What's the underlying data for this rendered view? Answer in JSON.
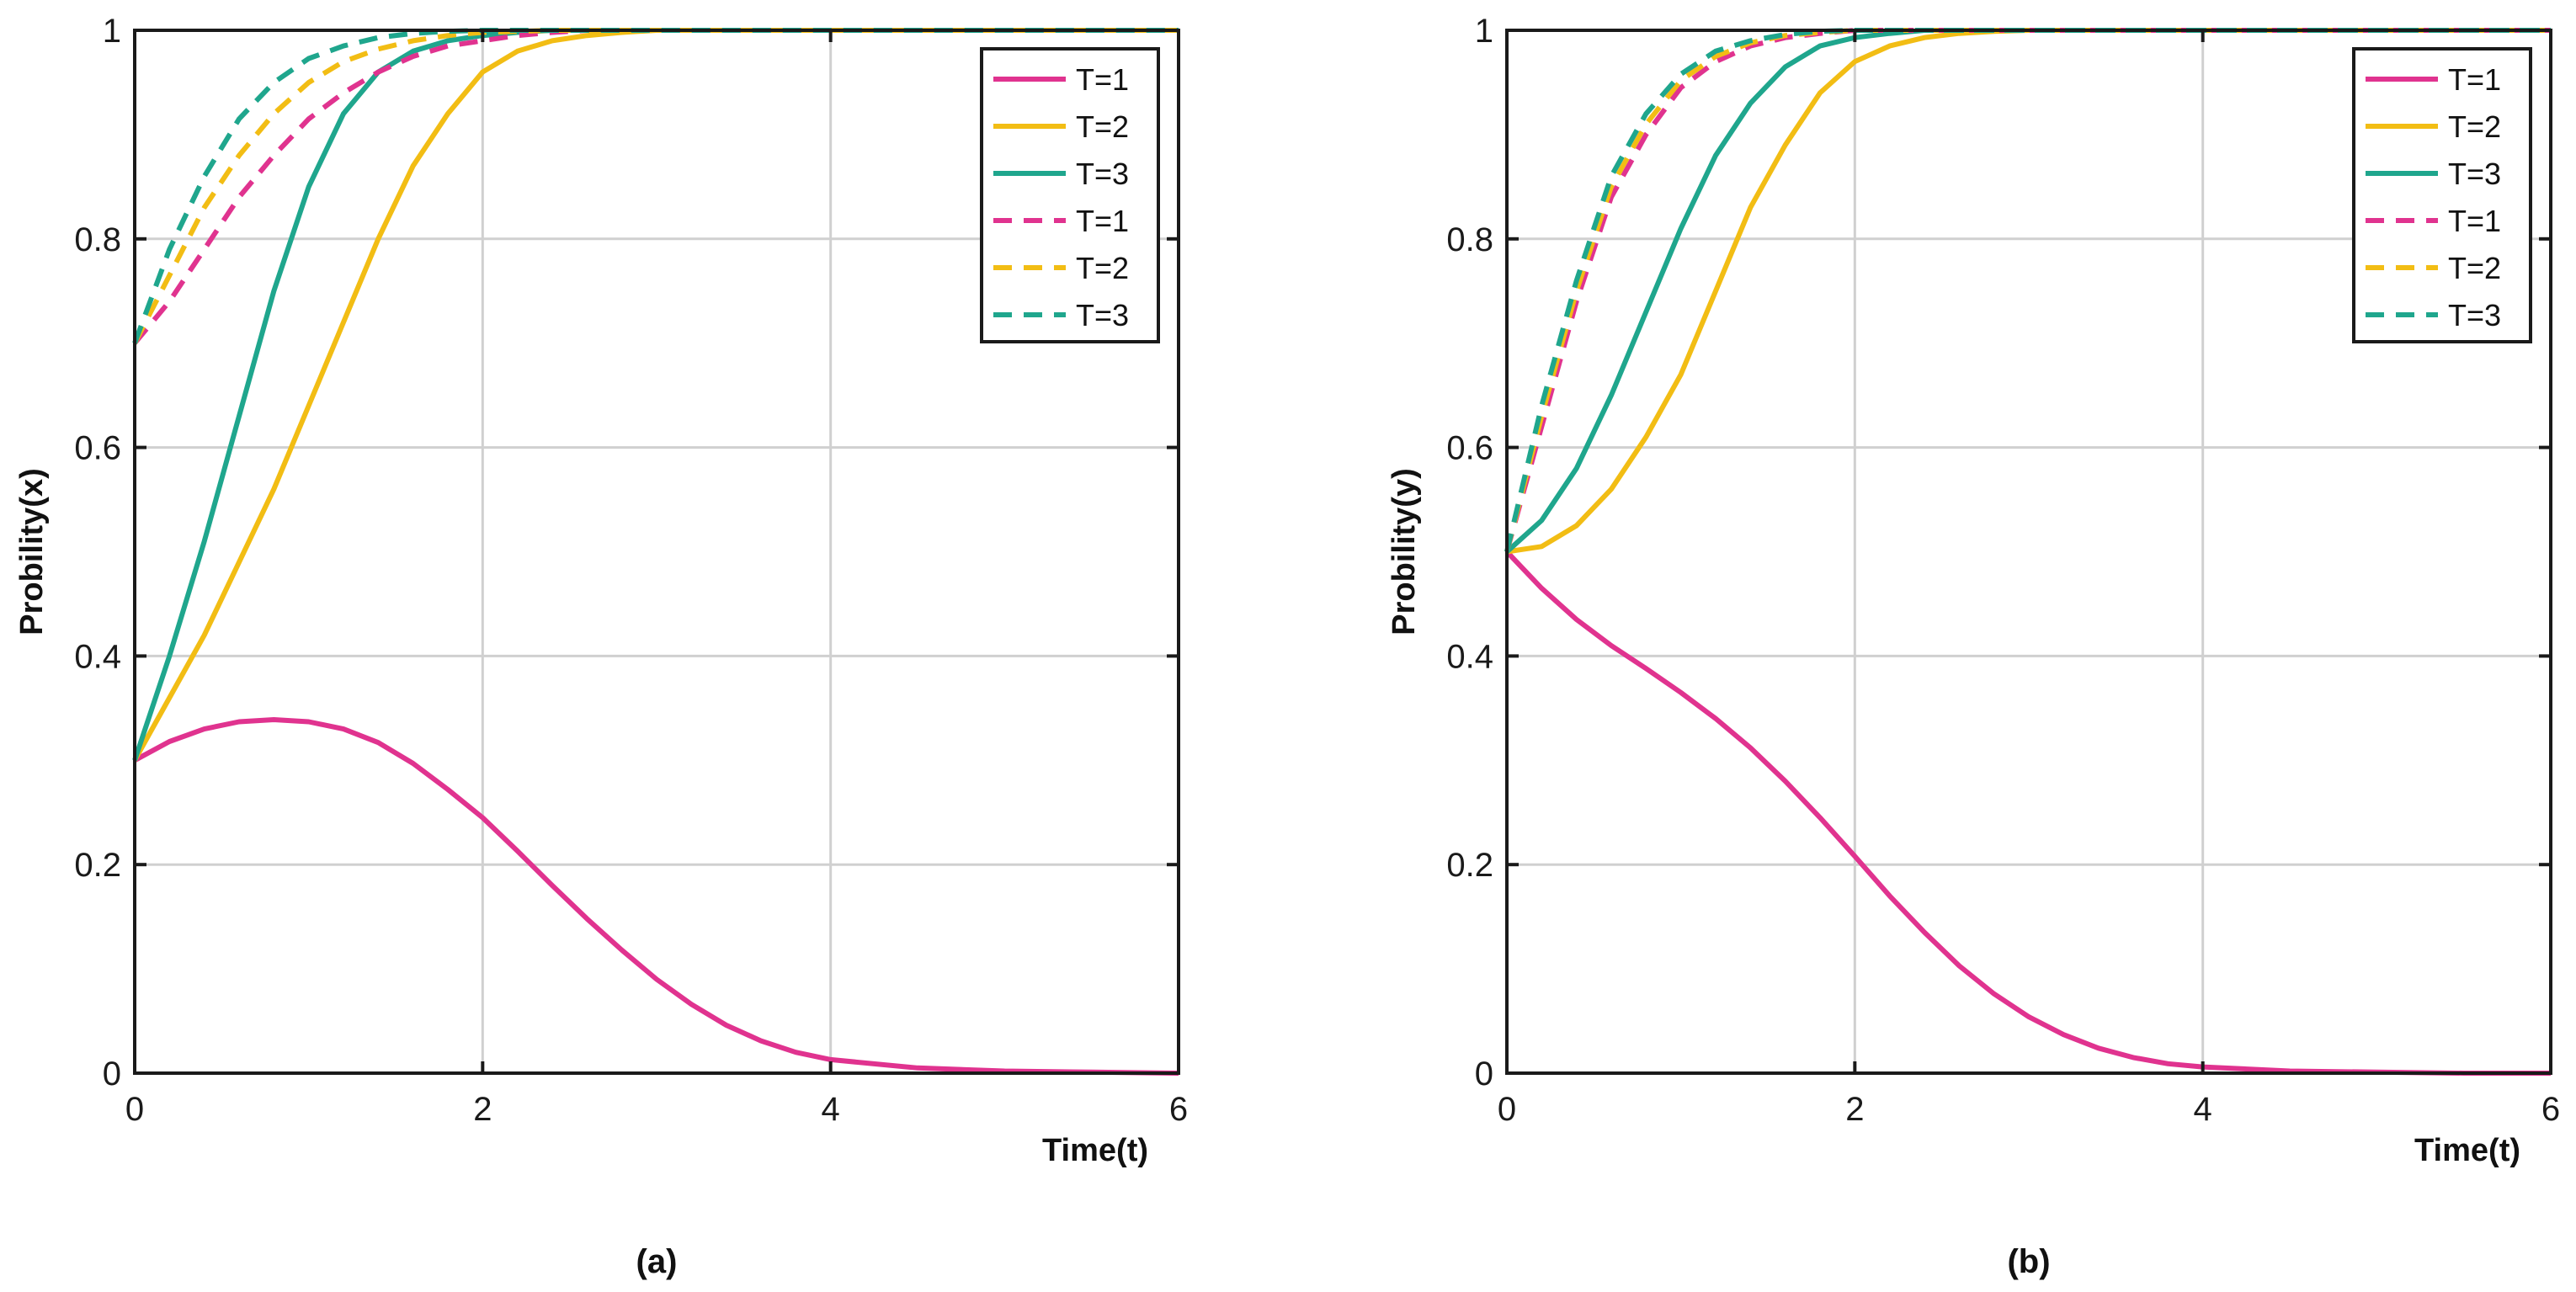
{
  "chart_data": [
    {
      "type": "line",
      "panel_label": "(a)",
      "xlabel": "Time(t)",
      "ylabel": "Probility(x)",
      "xlim": [
        0,
        6
      ],
      "ylim": [
        0,
        1
      ],
      "x_ticks": [
        0,
        2,
        4,
        6
      ],
      "y_ticks": [
        0,
        0.2,
        0.4,
        0.6,
        0.8,
        1
      ],
      "x_tick_labels": [
        "0",
        "2",
        "4",
        "6"
      ],
      "y_tick_labels": [
        "0",
        "0.2",
        "0.4",
        "0.6",
        "0.8",
        "1"
      ],
      "grid": true,
      "legend_position": "top-right",
      "series": [
        {
          "name": "T=1",
          "color": "#e0338f",
          "style": "solid",
          "x": [
            0,
            0.2,
            0.4,
            0.6,
            0.8,
            1.0,
            1.2,
            1.4,
            1.6,
            1.8,
            2.0,
            2.2,
            2.4,
            2.6,
            2.8,
            3.0,
            3.2,
            3.4,
            3.6,
            3.8,
            4.0,
            4.5,
            5.0,
            5.5,
            6.0
          ],
          "y": [
            0.3,
            0.318,
            0.33,
            0.337,
            0.339,
            0.337,
            0.33,
            0.317,
            0.297,
            0.272,
            0.245,
            0.213,
            0.18,
            0.148,
            0.118,
            0.09,
            0.066,
            0.046,
            0.031,
            0.02,
            0.013,
            0.005,
            0.002,
            0.001,
            0.0
          ]
        },
        {
          "name": "T=2",
          "color": "#f2bd14",
          "style": "solid",
          "x": [
            0,
            0.2,
            0.4,
            0.6,
            0.8,
            1.0,
            1.2,
            1.4,
            1.6,
            1.8,
            2.0,
            2.2,
            2.4,
            2.6,
            2.8,
            3.0,
            3.5,
            4.0,
            5.0,
            6.0
          ],
          "y": [
            0.3,
            0.36,
            0.42,
            0.49,
            0.56,
            0.64,
            0.72,
            0.8,
            0.87,
            0.92,
            0.96,
            0.98,
            0.99,
            0.995,
            0.998,
            1.0,
            1.0,
            1.0,
            1.0,
            1.0
          ]
        },
        {
          "name": "T=3",
          "color": "#1fa68d",
          "style": "solid",
          "x": [
            0,
            0.2,
            0.4,
            0.6,
            0.8,
            1.0,
            1.2,
            1.4,
            1.6,
            1.8,
            2.0,
            2.2,
            2.4,
            2.6,
            3.0,
            4.0,
            6.0
          ],
          "y": [
            0.3,
            0.4,
            0.51,
            0.63,
            0.75,
            0.85,
            0.92,
            0.96,
            0.98,
            0.99,
            0.995,
            0.998,
            1.0,
            1.0,
            1.0,
            1.0,
            1.0
          ]
        },
        {
          "name": "T=1",
          "color": "#e0338f",
          "style": "dashed",
          "x": [
            0,
            0.2,
            0.4,
            0.6,
            0.8,
            1.0,
            1.2,
            1.4,
            1.6,
            1.8,
            2.0,
            2.2,
            2.4,
            2.6,
            3.0,
            4.0,
            6.0
          ],
          "y": [
            0.7,
            0.74,
            0.79,
            0.84,
            0.88,
            0.915,
            0.94,
            0.96,
            0.975,
            0.985,
            0.99,
            0.995,
            0.998,
            1.0,
            1.0,
            1.0,
            1.0
          ]
        },
        {
          "name": "T=2",
          "color": "#f2bd14",
          "style": "dashed",
          "x": [
            0,
            0.2,
            0.4,
            0.6,
            0.8,
            1.0,
            1.2,
            1.4,
            1.6,
            1.8,
            2.0,
            2.4,
            3.0,
            4.0,
            6.0
          ],
          "y": [
            0.7,
            0.765,
            0.83,
            0.88,
            0.92,
            0.95,
            0.97,
            0.982,
            0.99,
            0.995,
            0.998,
            1.0,
            1.0,
            1.0,
            1.0
          ]
        },
        {
          "name": "T=3",
          "color": "#1fa68d",
          "style": "dashed",
          "x": [
            0,
            0.2,
            0.4,
            0.6,
            0.8,
            1.0,
            1.2,
            1.4,
            1.6,
            1.8,
            2.0,
            3.0,
            4.0,
            6.0
          ],
          "y": [
            0.7,
            0.79,
            0.86,
            0.915,
            0.95,
            0.973,
            0.985,
            0.993,
            0.997,
            0.999,
            1.0,
            1.0,
            1.0,
            1.0
          ]
        }
      ]
    },
    {
      "type": "line",
      "panel_label": "(b)",
      "xlabel": "Time(t)",
      "ylabel": "Probility(y)",
      "xlim": [
        0,
        6
      ],
      "ylim": [
        0,
        1
      ],
      "x_ticks": [
        0,
        2,
        4,
        6
      ],
      "y_ticks": [
        0,
        0.2,
        0.4,
        0.6,
        0.8,
        1
      ],
      "x_tick_labels": [
        "0",
        "2",
        "4",
        "6"
      ],
      "y_tick_labels": [
        "0",
        "0.2",
        "0.4",
        "0.6",
        "0.8",
        "1"
      ],
      "grid": true,
      "legend_position": "top-right",
      "series": [
        {
          "name": "T=1",
          "color": "#e0338f",
          "style": "solid",
          "x": [
            0,
            0.2,
            0.4,
            0.6,
            0.8,
            1.0,
            1.2,
            1.4,
            1.6,
            1.8,
            2.0,
            2.2,
            2.4,
            2.6,
            2.8,
            3.0,
            3.2,
            3.4,
            3.6,
            3.8,
            4.0,
            4.5,
            5.0,
            5.5,
            6.0
          ],
          "y": [
            0.5,
            0.465,
            0.435,
            0.41,
            0.388,
            0.365,
            0.34,
            0.312,
            0.28,
            0.245,
            0.208,
            0.17,
            0.135,
            0.103,
            0.076,
            0.054,
            0.037,
            0.024,
            0.015,
            0.009,
            0.006,
            0.002,
            0.001,
            0.0,
            0.0
          ]
        },
        {
          "name": "T=2",
          "color": "#f2bd14",
          "style": "solid",
          "x": [
            0,
            0.2,
            0.4,
            0.6,
            0.8,
            1.0,
            1.2,
            1.4,
            1.6,
            1.8,
            2.0,
            2.2,
            2.4,
            2.6,
            2.8,
            3.0,
            3.5,
            4.0,
            6.0
          ],
          "y": [
            0.5,
            0.505,
            0.525,
            0.56,
            0.61,
            0.67,
            0.75,
            0.83,
            0.89,
            0.94,
            0.97,
            0.985,
            0.993,
            0.997,
            0.999,
            1.0,
            1.0,
            1.0,
            1.0
          ]
        },
        {
          "name": "T=3",
          "color": "#1fa68d",
          "style": "solid",
          "x": [
            0,
            0.2,
            0.4,
            0.6,
            0.8,
            1.0,
            1.2,
            1.4,
            1.6,
            1.8,
            2.0,
            2.2,
            2.4,
            3.0,
            4.0,
            6.0
          ],
          "y": [
            0.5,
            0.53,
            0.58,
            0.65,
            0.73,
            0.81,
            0.88,
            0.93,
            0.965,
            0.985,
            0.993,
            0.997,
            1.0,
            1.0,
            1.0,
            1.0
          ]
        },
        {
          "name": "T=1",
          "color": "#e0338f",
          "style": "dashed",
          "x": [
            0,
            0.2,
            0.4,
            0.6,
            0.8,
            1.0,
            1.2,
            1.4,
            1.6,
            1.8,
            2.0,
            3.0,
            4.0,
            6.0
          ],
          "y": [
            0.5,
            0.62,
            0.74,
            0.84,
            0.9,
            0.945,
            0.97,
            0.985,
            0.993,
            0.997,
            1.0,
            1.0,
            1.0,
            1.0
          ]
        },
        {
          "name": "T=2",
          "color": "#f2bd14",
          "style": "dashed",
          "x": [
            0,
            0.2,
            0.4,
            0.6,
            0.8,
            1.0,
            1.2,
            1.4,
            1.6,
            1.8,
            2.0,
            3.0,
            4.0,
            6.0
          ],
          "y": [
            0.5,
            0.63,
            0.75,
            0.85,
            0.91,
            0.952,
            0.975,
            0.988,
            0.995,
            0.998,
            1.0,
            1.0,
            1.0,
            1.0
          ]
        },
        {
          "name": "T=3",
          "color": "#1fa68d",
          "style": "dashed",
          "x": [
            0,
            0.2,
            0.4,
            0.6,
            0.8,
            1.0,
            1.2,
            1.4,
            1.6,
            1.8,
            2.0,
            3.0,
            4.0,
            6.0
          ],
          "y": [
            0.5,
            0.64,
            0.76,
            0.86,
            0.92,
            0.958,
            0.98,
            0.99,
            0.996,
            0.999,
            1.0,
            1.0,
            1.0,
            1.0
          ]
        }
      ]
    }
  ]
}
